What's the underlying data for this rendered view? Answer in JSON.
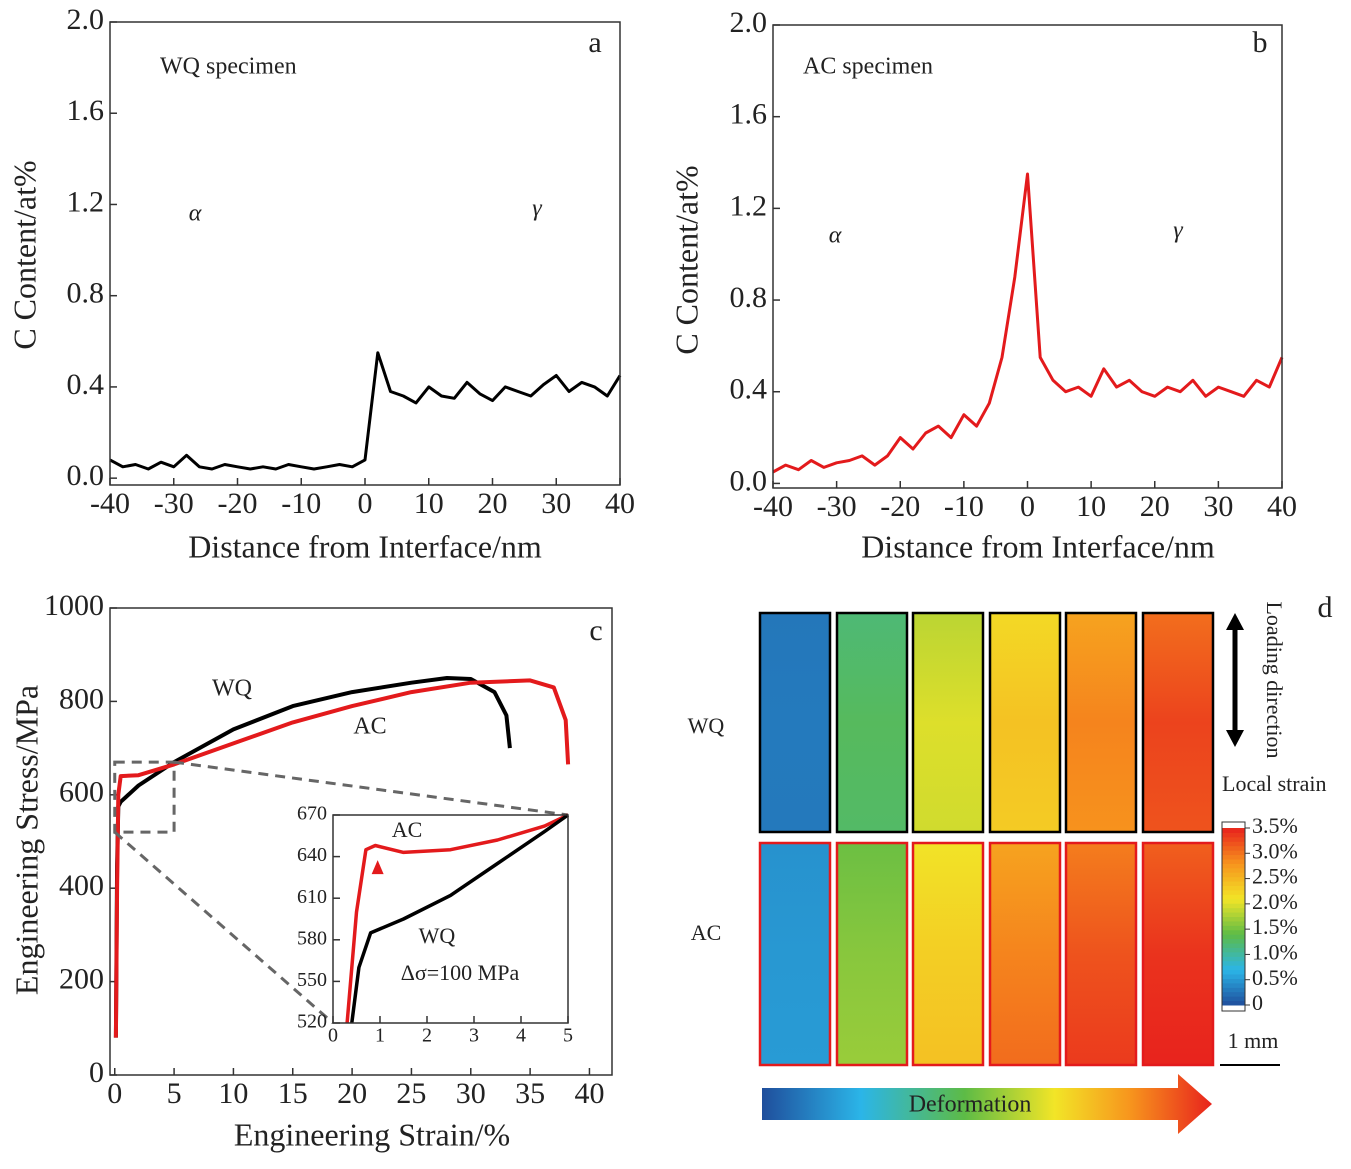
{
  "chart_data": [
    {
      "type": "line",
      "x_label": "Distance from Interface/nm",
      "y_label": "C Content/at%",
      "annotations": [
        "a",
        "WQ specimen",
        "α",
        "γ"
      ],
      "x": [
        -40,
        -38,
        -36,
        -34,
        -32,
        -30,
        -28,
        -26,
        -24,
        -22,
        -20,
        -18,
        -16,
        -14,
        -12,
        -10,
        -8,
        -6,
        -4,
        -2,
        0,
        2,
        4,
        6,
        8,
        10,
        12,
        14,
        16,
        18,
        20,
        22,
        24,
        26,
        28,
        30,
        32,
        34,
        36,
        38,
        40
      ],
      "values": [
        0.08,
        0.05,
        0.06,
        0.04,
        0.07,
        0.05,
        0.1,
        0.05,
        0.04,
        0.06,
        0.05,
        0.04,
        0.05,
        0.04,
        0.06,
        0.05,
        0.04,
        0.05,
        0.06,
        0.05,
        0.08,
        0.55,
        0.38,
        0.36,
        0.33,
        0.4,
        0.36,
        0.35,
        0.42,
        0.37,
        0.34,
        0.4,
        0.38,
        0.36,
        0.41,
        0.45,
        0.38,
        0.42,
        0.4,
        0.36,
        0.45
      ],
      "color": "#000000",
      "xlim": [
        -40,
        40
      ],
      "ylim": [
        -0.03,
        2.0
      ],
      "xticks": [
        -40,
        -30,
        -20,
        -10,
        0,
        10,
        20,
        30,
        40
      ],
      "yticks": [
        {
          "value": 0,
          "label": "0.0"
        },
        0.4,
        0.8,
        1.2,
        1.6,
        {
          "value": 2,
          "label": "2.0"
        }
      ]
    },
    {
      "type": "line",
      "x_label": "Distance from Interface/nm",
      "y_label": "C Content/at%",
      "annotations": [
        "b",
        "AC specimen",
        "α",
        "γ"
      ],
      "x": [
        -40,
        -38,
        -36,
        -34,
        -32,
        -30,
        -28,
        -26,
        -24,
        -22,
        -20,
        -18,
        -16,
        -14,
        -12,
        -10,
        -8,
        -6,
        -4,
        -2,
        0,
        2,
        4,
        6,
        8,
        10,
        12,
        14,
        16,
        18,
        20,
        22,
        24,
        26,
        28,
        30,
        32,
        34,
        36,
        38,
        40
      ],
      "values": [
        0.05,
        0.08,
        0.06,
        0.1,
        0.07,
        0.09,
        0.1,
        0.12,
        0.08,
        0.12,
        0.2,
        0.15,
        0.22,
        0.25,
        0.2,
        0.3,
        0.25,
        0.35,
        0.55,
        0.9,
        1.35,
        0.55,
        0.45,
        0.4,
        0.42,
        0.38,
        0.5,
        0.42,
        0.45,
        0.4,
        0.38,
        0.42,
        0.4,
        0.45,
        0.38,
        0.42,
        0.4,
        0.38,
        0.45,
        0.42,
        0.55
      ],
      "color": "#e31a1c",
      "xlim": [
        -40,
        40
      ],
      "ylim": [
        -0.02,
        2.0
      ],
      "xticks": [
        -40,
        -30,
        -20,
        -10,
        0,
        10,
        20,
        30,
        40
      ],
      "yticks": [
        {
          "value": 0,
          "label": "0.0"
        },
        0.4,
        0.8,
        1.2,
        1.6,
        {
          "value": 2,
          "label": "2.0"
        }
      ]
    },
    {
      "type": "line",
      "x_label": "Engineering Strain/%",
      "y_label": "Engineering Stress/MPa",
      "annotations": [
        "c"
      ],
      "series": [
        {
          "name": "WQ",
          "color": "#000000",
          "x": [
            0.1,
            0.2,
            0.3,
            0.5,
            2,
            5,
            10,
            15,
            20,
            25,
            28,
            30,
            32,
            33,
            33.3
          ],
          "values": [
            80,
            450,
            575,
            585,
            620,
            670,
            740,
            790,
            820,
            840,
            850,
            848,
            820,
            770,
            700
          ]
        },
        {
          "name": "AC",
          "color": "#e31a1c",
          "x": [
            0.1,
            0.2,
            0.3,
            0.5,
            2,
            5,
            10,
            15,
            20,
            25,
            30,
            35,
            37,
            38,
            38.2
          ],
          "values": [
            80,
            400,
            600,
            640,
            642,
            665,
            710,
            755,
            790,
            820,
            840,
            845,
            830,
            760,
            665
          ]
        }
      ],
      "xlim": [
        -0.4,
        41.9
      ],
      "ylim": [
        0,
        1000
      ],
      "xticks": [
        0,
        5,
        10,
        15,
        20,
        25,
        30,
        35,
        40
      ],
      "yticks": [
        0,
        200,
        400,
        600,
        800,
        1000
      ]
    },
    {
      "type": "line",
      "annotations": [
        "Δσ=100 MPa"
      ],
      "series": [
        {
          "name": "AC",
          "color": "#e31a1c",
          "x": [
            0.3,
            0.5,
            0.7,
            0.9,
            1.5,
            2.5,
            3.5,
            4.5,
            5
          ],
          "values": [
            520,
            600,
            645,
            648,
            643,
            645,
            652,
            662,
            670
          ]
        },
        {
          "name": "WQ",
          "color": "#000000",
          "x": [
            0.4,
            0.55,
            0.8,
            1.5,
            2.5,
            3.5,
            4.5,
            5
          ],
          "values": [
            520,
            560,
            585,
            595,
            612,
            635,
            658,
            670
          ]
        }
      ],
      "xlim": [
        0,
        5
      ],
      "ylim": [
        520,
        670
      ],
      "xticks": [
        0,
        1,
        2,
        3,
        4,
        5
      ],
      "yticks": [
        520,
        550,
        580,
        610,
        640,
        670
      ]
    },
    {
      "type": "strain-map",
      "label": "d",
      "rows": [
        {
          "name": "WQ",
          "border_color": "#000000",
          "values": [
            0.3,
            1.3,
            2.0,
            2.4,
            2.9,
            3.3
          ]
        },
        {
          "name": "AC",
          "border_color": "#e31a1c",
          "values": [
            0.5,
            1.6,
            2.3,
            2.9,
            3.2,
            3.4
          ]
        }
      ],
      "loading_label": "Loading direction",
      "colorbar_title": "Local strain",
      "colormap": [
        "#1f4e9c",
        "#2bb5e8",
        "#5dbb46",
        "#f2e527",
        "#f7941d",
        "#e8231d"
      ],
      "clim": [
        0,
        3.5
      ],
      "colorbar_ticks": [
        0,
        {
          "value": 0.5,
          "label": "0.5%"
        },
        {
          "value": 1,
          "label": "1.0%"
        },
        {
          "value": 1.5,
          "label": "1.5%"
        },
        {
          "value": 2,
          "label": "2.0%"
        },
        {
          "value": 2.5,
          "label": "2.5%"
        },
        {
          "value": 3,
          "label": "3.0%"
        },
        {
          "value": 3.5,
          "label": "3.5%"
        }
      ],
      "scale_bar": "1 mm",
      "arrow_label": "Deformation"
    }
  ]
}
